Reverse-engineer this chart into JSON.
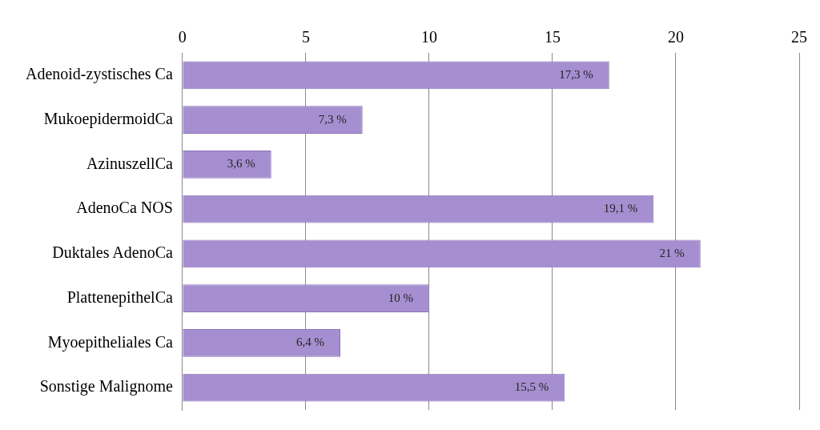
{
  "chart_data": {
    "type": "bar",
    "orientation": "horizontal",
    "categories": [
      "Adenoid-zystisches Ca",
      "MukoepidermoidCa",
      "AzinuszellCa",
      "AdenoCa NOS",
      "Duktales AdenoCa",
      "PlattenepithelCa",
      "Myoepitheliales Ca",
      "Sonstige Malignome"
    ],
    "values": [
      17.3,
      7.3,
      3.6,
      19.1,
      21,
      10,
      6.4,
      15.5
    ],
    "value_labels": [
      "17,3 %",
      "7,3 %",
      "3,6 %",
      "19,1 %",
      "21 %",
      "10 %",
      "6,4 %",
      "15,5 %"
    ],
    "color": "#a58fd0",
    "xlim": [
      0,
      25
    ],
    "xticks": [
      0,
      5,
      10,
      15,
      20,
      25
    ],
    "grid": "x",
    "legend": false
  }
}
